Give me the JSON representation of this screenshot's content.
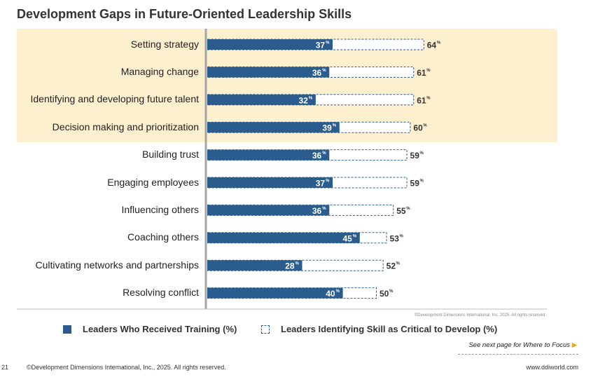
{
  "page": {
    "title": "Development Gaps in Future-Oriented Leadership Skills",
    "small_copyright": "©Development Dimensions International, Inc. 2025. All rights reserved.",
    "see_next_page": "See next page for Where to Focus",
    "page_number": "21",
    "footer_copyright": "©Development Dimensions International, Inc., 2025. All rights reserved.",
    "website": "www.ddiworld.com"
  },
  "colors": {
    "training": "#2a5d8e",
    "highlight": "#fdf0cf",
    "arrow": "#f0a500"
  },
  "chart_data": {
    "type": "bar",
    "orientation": "horizontal",
    "title": "Development Gaps in Future-Oriented Leadership Skills",
    "unit": "%",
    "categories": [
      "Setting strategy",
      "Managing change",
      "Identifying and developing future talent",
      "Decision making and prioritization",
      "Building trust",
      "Engaging employees",
      "Influencing others",
      "Coaching others",
      "Cultivating networks and partnerships",
      "Resolving conflict"
    ],
    "series": [
      {
        "name": "Leaders Who Received Training (%)",
        "style": "solid",
        "values": [
          37,
          36,
          32,
          39,
          36,
          37,
          36,
          45,
          28,
          40
        ]
      },
      {
        "name": "Leaders Identifying Skill as Critical to Develop (%)",
        "style": "dashed-outline",
        "values": [
          64,
          61,
          61,
          60,
          59,
          59,
          55,
          53,
          52,
          50
        ]
      }
    ],
    "highlighted_categories": [
      0,
      1,
      2,
      3
    ],
    "legend_position": "bottom",
    "grid": false
  }
}
